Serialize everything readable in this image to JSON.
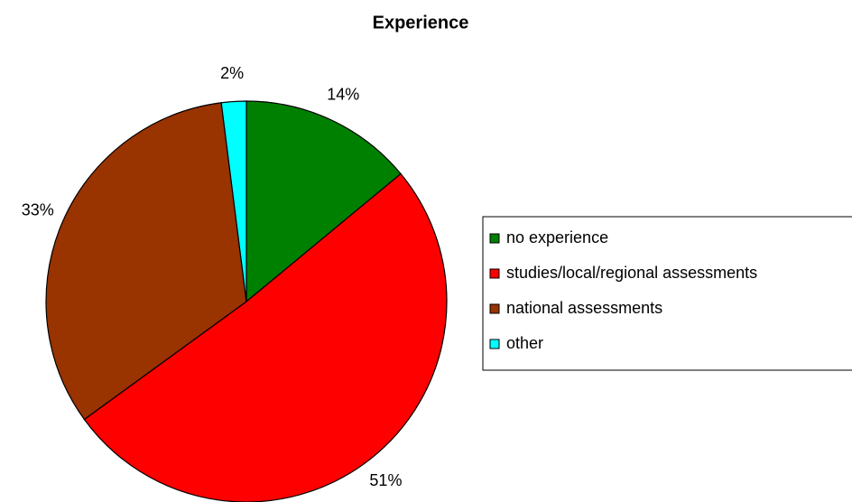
{
  "chart_data": {
    "type": "pie",
    "title": "Experience",
    "categories": [
      "no experience",
      "studies/local/regional assessments",
      "national assessments",
      "other"
    ],
    "values": [
      14,
      51,
      33,
      2
    ],
    "value_labels": [
      "14%",
      "51%",
      "33%",
      "2%"
    ],
    "colors": [
      "#008000",
      "#ff0000",
      "#993300",
      "#00ffff"
    ],
    "legend": "right"
  }
}
